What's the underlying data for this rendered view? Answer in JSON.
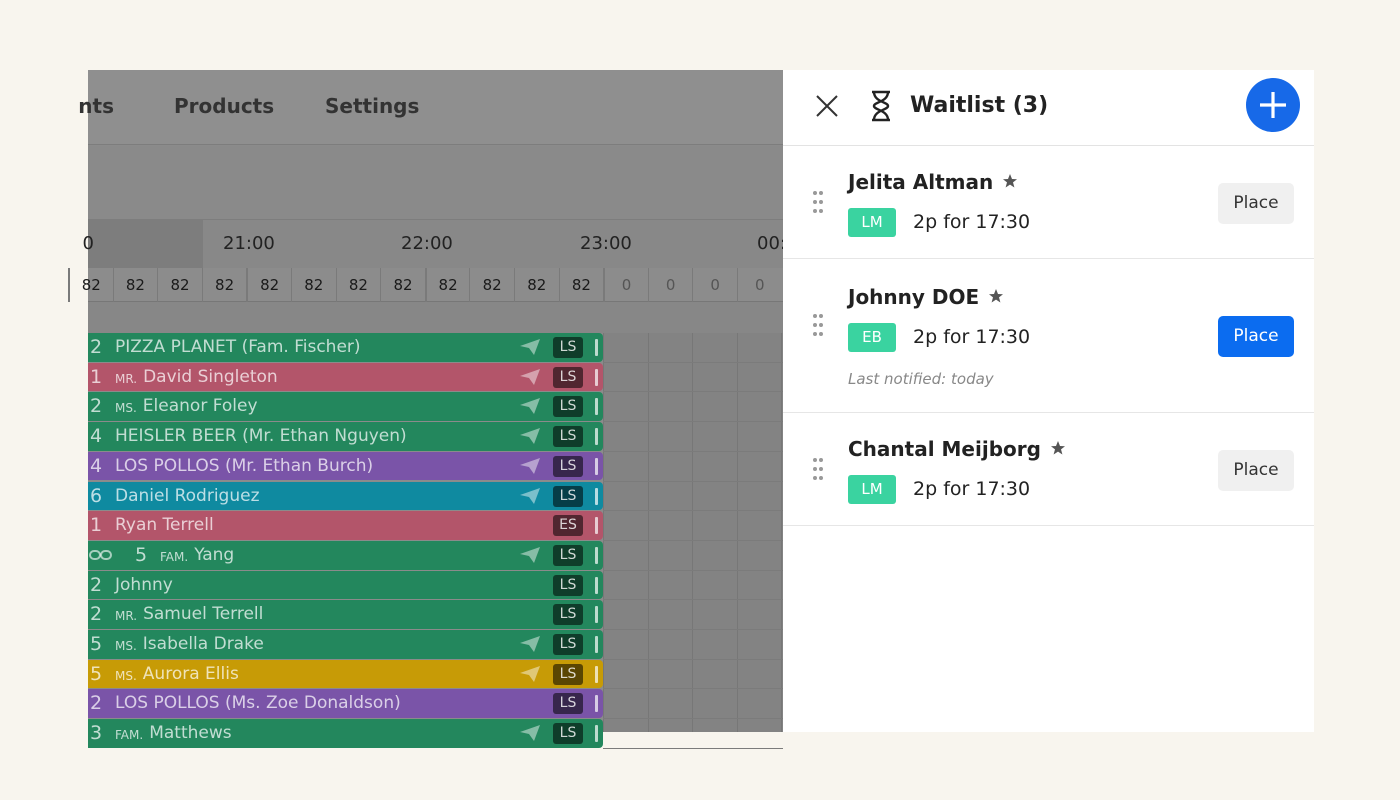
{
  "nav": {
    "tabs": [
      "nts",
      "Products",
      "Settings"
    ]
  },
  "timeline": {
    "times": [
      "0",
      "21:00",
      "22:00",
      "23:00",
      "00:"
    ],
    "capacity": [
      82,
      82,
      82,
      82,
      82,
      82,
      82,
      82,
      82,
      82,
      82,
      82,
      0,
      0,
      0,
      0
    ]
  },
  "reservations": [
    {
      "size": 2,
      "name": "PIZZA PLANET (Fam. Fischer)",
      "badge": "LS",
      "color": "#23875d",
      "sent": true
    },
    {
      "size": 1,
      "title": "MR.",
      "name": "David Singleton",
      "badge": "LS",
      "color": "#b3556a",
      "sent": true
    },
    {
      "size": 2,
      "title": "MS.",
      "name": "Eleanor Foley",
      "badge": "LS",
      "color": "#23875d",
      "sent": true
    },
    {
      "size": 4,
      "name": "HEISLER BEER (Mr. Ethan Nguyen)",
      "badge": "LS",
      "color": "#23875d",
      "sent": true
    },
    {
      "size": 4,
      "name": "LOS POLLOS (Mr. Ethan Burch)",
      "badge": "LS",
      "color": "#7a54a8",
      "sent": true
    },
    {
      "size": 6,
      "name": "Daniel Rodriguez",
      "badge": "LS",
      "color": "#0f8aa0",
      "sent": true
    },
    {
      "size": 1,
      "name": "Ryan Terrell",
      "badge": "ES",
      "color": "#b3556a",
      "sent": false
    },
    {
      "size": 5,
      "title": "FAM.",
      "name": "Yang",
      "badge": "LS",
      "color": "#23875d",
      "sent": true,
      "linked": true
    },
    {
      "size": 2,
      "name": "Johnny",
      "badge": "LS",
      "color": "#23875d",
      "sent": false
    },
    {
      "size": 2,
      "title": "MR.",
      "name": "Samuel Terrell",
      "badge": "LS",
      "color": "#23875d",
      "sent": false
    },
    {
      "size": 5,
      "title": "MS.",
      "name": "Isabella Drake",
      "badge": "LS",
      "color": "#23875d",
      "sent": true
    },
    {
      "size": 5,
      "title": "MS.",
      "name": "Aurora Ellis",
      "badge": "LS",
      "color": "#c79b06",
      "sent": true
    },
    {
      "size": 2,
      "name": "LOS POLLOS (Ms. Zoe Donaldson)",
      "badge": "LS",
      "color": "#7a54a8",
      "sent": false
    },
    {
      "size": 3,
      "title": "FAM.",
      "name": "Matthews",
      "badge": "LS",
      "color": "#23875d",
      "sent": true
    }
  ],
  "waitlist": {
    "title": "Waitlist (3)",
    "items": [
      {
        "name": "Jelita Altman",
        "badge": "LM",
        "details": "2p for 17:30",
        "button": "Place"
      },
      {
        "name": "Johnny DOE",
        "badge": "EB",
        "details": "2p for 17:30",
        "button": "Place",
        "note": "Last notified: today",
        "primary": true
      },
      {
        "name": "Chantal Meijborg",
        "badge": "LM",
        "details": "2p for 17:30",
        "button": "Place"
      }
    ]
  }
}
